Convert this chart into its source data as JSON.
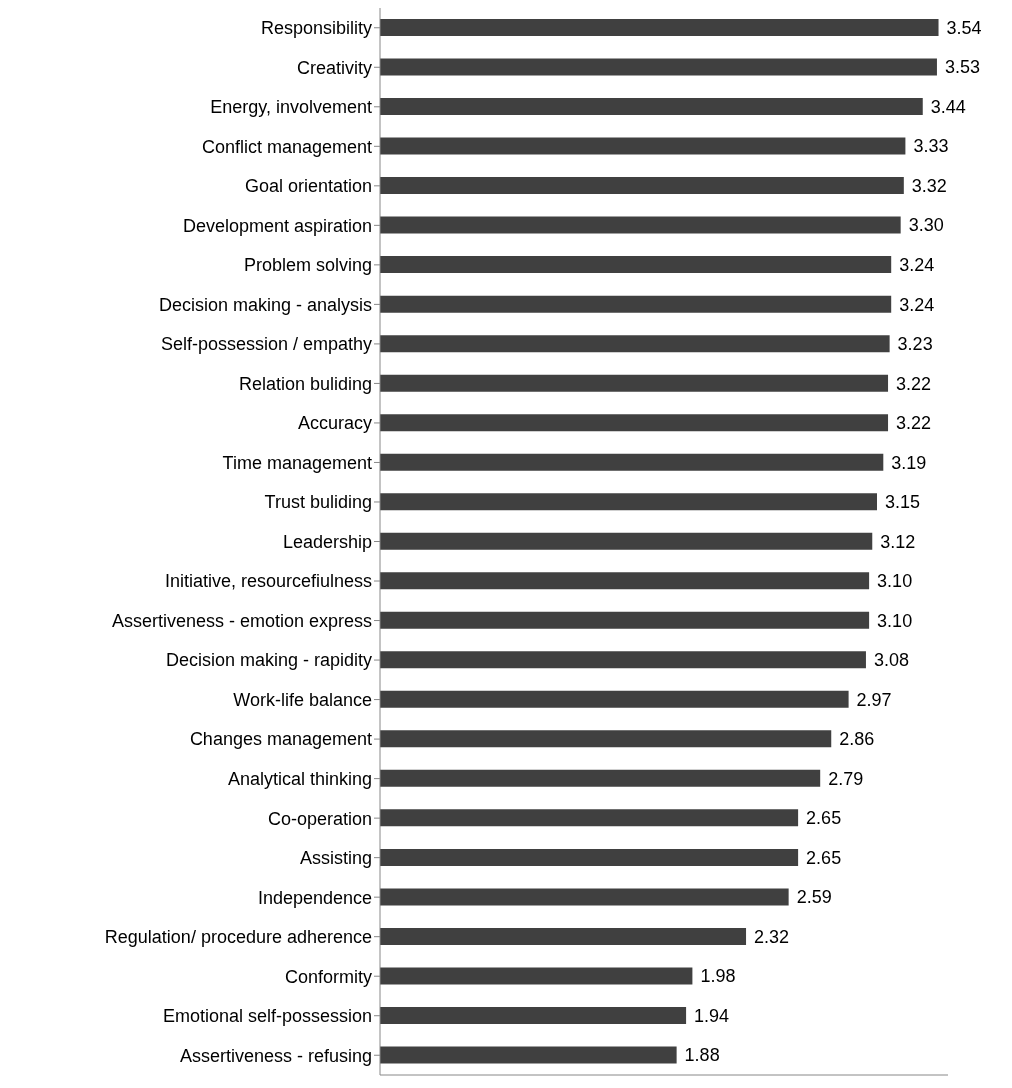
{
  "chart_data": {
    "type": "bar",
    "orientation": "horizontal",
    "categories": [
      "Responsibility",
      "Creativity",
      "Energy, involvement",
      "Conflict management",
      "Goal orientation",
      "Development aspiration",
      "Problem solving",
      "Decision making - analysis",
      "Self-possession / empathy",
      "Relation buliding",
      "Accuracy",
      "Time management",
      "Trust buliding",
      "Leadership",
      "Initiative, resourcefiulness",
      "Assertiveness - emotion express",
      "Decision making - rapidity",
      "Work-life balance",
      "Changes management",
      "Analytical thinking",
      "Co-operation",
      "Assisting",
      "Independence",
      "Regulation/ procedure adherence",
      "Conformity",
      "Emotional self-possession",
      "Assertiveness - refusing"
    ],
    "values": [
      3.54,
      3.53,
      3.44,
      3.33,
      3.32,
      3.3,
      3.24,
      3.24,
      3.23,
      3.22,
      3.22,
      3.19,
      3.15,
      3.12,
      3.1,
      3.1,
      3.08,
      2.97,
      2.86,
      2.79,
      2.65,
      2.65,
      2.59,
      2.32,
      1.98,
      1.94,
      1.88
    ],
    "value_labels": [
      "3.54",
      "3.53",
      "3.44",
      "3.33",
      "3.32",
      "3.30",
      "3.24",
      "3.24",
      "3.23",
      "3.22",
      "3.22",
      "3.19",
      "3.15",
      "3.12",
      "3.10",
      "3.10",
      "3.08",
      "2.97",
      "2.86",
      "2.79",
      "2.65",
      "2.65",
      "2.59",
      "2.32",
      "1.98",
      "1.94",
      "1.88"
    ],
    "color": "#404040",
    "xlim": [
      0,
      3.6
    ],
    "tick_labels": "y"
  }
}
